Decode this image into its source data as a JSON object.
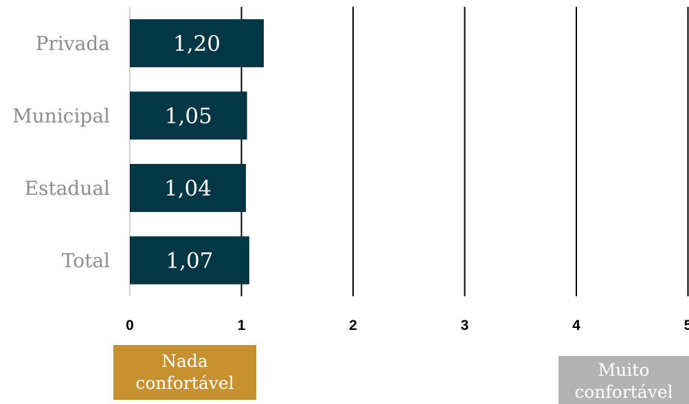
{
  "chart_data": {
    "type": "bar",
    "orientation": "horizontal",
    "categories": [
      "Privada",
      "Municipal",
      "Estadual",
      "Total"
    ],
    "values": [
      1.2,
      1.05,
      1.04,
      1.07
    ],
    "value_labels": [
      "1,20",
      "1,05",
      "1,04",
      "1,07"
    ],
    "xlim": [
      0,
      5
    ],
    "x_ticks": [
      "0",
      "1",
      "2",
      "3",
      "4",
      "5"
    ],
    "grid": "vertical lines at 1-5",
    "bar_color": "#033745"
  },
  "scale_labels": {
    "low": "Nada confortável",
    "low_color": "#c8912f",
    "high": "Muito confortável",
    "high_color": "#b3b3b3"
  }
}
